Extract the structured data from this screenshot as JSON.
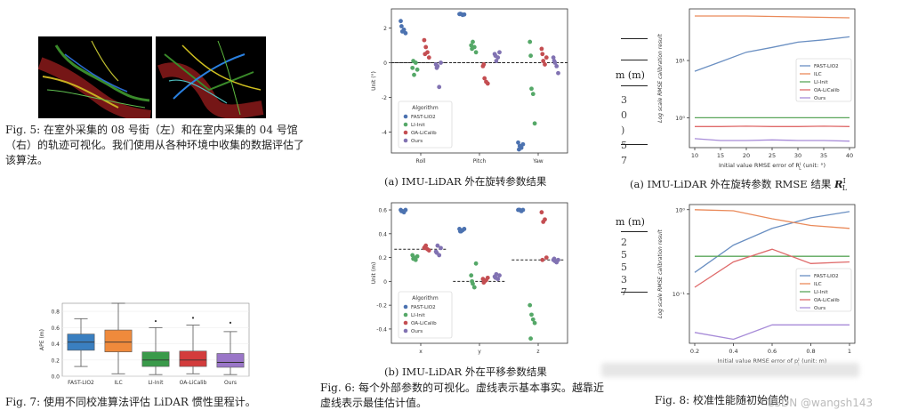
{
  "fig5": {
    "caption": "Fig. 5: 在室外采集的 08 号街（左）和在室内采集的 04 号馆（右）的轨迹可视化。我们使用从各种环境中收集的数据评估了该算法。"
  },
  "fig6": {
    "caption": "Fig. 6: 每个外部参数的可视化。虚线表示基本事实。越靠近虚线表示最佳估计值。",
    "sub_a": "(a) IMU-LiDAR 外在旋转参数结果",
    "sub_b": "(b) IMU-LiDAR 外在平移参数结果"
  },
  "fig7": {
    "caption": "Fig. 7: 使用不同校准算法评估 LiDAR 惯性里程计。"
  },
  "fig8": {
    "caption": "Fig. 8: 校准性能随初始值的",
    "sub_a": "(a) IMU-LiDAR 外在旋转参数 RMSE 结果",
    "sub_a_math": "R",
    "sub_a_sup": "I",
    "sub_a_sub": "L",
    "table_header": "m (m)",
    "table_header2": "m (m)"
  },
  "watermark": "CSDN @wangsh143",
  "colors": {
    "blue": "#4c72b0",
    "green": "#55a868",
    "red": "#c44e52",
    "purple": "#8172b2",
    "line_blue": "#6a8fc2",
    "line_orange": "#ea8a5a",
    "line_green": "#5aa65a",
    "line_red": "#df6a6a",
    "line_purple": "#a78bd8"
  },
  "chart_data": [
    {
      "id": "fig6a",
      "type": "scatter",
      "ylabel": "Unit (°)",
      "categories": [
        "Roll",
        "Pitch",
        "Yaw"
      ],
      "ylim": [
        -5.2,
        3.1
      ],
      "yticks": [
        2,
        0,
        -2,
        -4
      ],
      "ground_truth": [
        0,
        0,
        0
      ],
      "legend": {
        "title": "Algorithm",
        "position": "lower-left"
      },
      "series": [
        {
          "name": "FAST-LIO2",
          "color": "#4c72b0",
          "values": [
            [
              2.4,
              1.8,
              1.9,
              1.7,
              2.1
            ],
            [
              2.8,
              2.8,
              2.75,
              2.78,
              2.82
            ],
            [
              -4.6,
              -4.8,
              -4.9,
              -4.7,
              -5.0
            ]
          ]
        },
        {
          "name": "LI-Init",
          "color": "#55a868",
          "values": [
            [
              -0.3,
              -0.7,
              0.0,
              -0.4,
              0.1
            ],
            [
              1.0,
              1.2,
              0.9,
              0.6,
              0.8
            ],
            [
              1.2,
              -1.5,
              -1.8,
              -3.5,
              0.4
            ]
          ]
        },
        {
          "name": "OA-LiCalib",
          "color": "#c44e52",
          "values": [
            [
              1.3,
              0.9,
              0.6,
              0.3,
              0.5
            ],
            [
              -0.2,
              -0.9,
              -1.1,
              -1.2,
              -0.1
            ],
            [
              0.8,
              0.1,
              -0.1,
              0.3,
              0.5
            ]
          ]
        },
        {
          "name": "Ours",
          "color": "#8172b2",
          "values": [
            [
              -0.1,
              -0.2,
              -1.4,
              0.0,
              -0.3
            ],
            [
              0.5,
              0.1,
              0.3,
              0.6,
              0.4
            ],
            [
              0.3,
              0.0,
              -0.2,
              -0.6,
              0.1
            ]
          ]
        }
      ]
    },
    {
      "id": "fig6b",
      "type": "scatter",
      "ylabel": "Unit (m)",
      "categories": [
        "x",
        "y",
        "z"
      ],
      "ylim": [
        -0.52,
        0.66
      ],
      "yticks": [
        0.6,
        0.4,
        0.2,
        0.0,
        -0.2,
        -0.4
      ],
      "ground_truth": [
        0.27,
        0.0,
        0.18
      ],
      "legend": {
        "title": "Algorithm",
        "position": "lower-left"
      },
      "series": [
        {
          "name": "FAST-LIO2",
          "color": "#4c72b0",
          "values": [
            [
              0.6,
              0.59,
              0.58,
              0.6,
              0.59
            ],
            [
              0.44,
              0.42,
              0.43,
              0.44,
              0.42
            ],
            [
              0.6,
              0.6,
              0.59,
              0.6,
              0.6
            ]
          ]
        },
        {
          "name": "LI-Init",
          "color": "#55a868",
          "values": [
            [
              0.22,
              0.2,
              0.18,
              0.21,
              0.19
            ],
            [
              0.05,
              -0.02,
              -0.05,
              0.15,
              0.0
            ],
            [
              -0.2,
              -0.28,
              -0.32,
              -0.35,
              -0.48
            ]
          ]
        },
        {
          "name": "OA-LiCalib",
          "color": "#c44e52",
          "values": [
            [
              0.28,
              0.3,
              0.27,
              0.26,
              0.29
            ],
            [
              0.02,
              0.0,
              0.01,
              0.03,
              -0.01
            ],
            [
              0.58,
              0.5,
              0.52,
              0.2,
              0.18
            ]
          ]
        },
        {
          "name": "Ours",
          "color": "#8172b2",
          "values": [
            [
              0.25,
              0.3,
              0.22,
              0.28,
              0.24
            ],
            [
              0.04,
              0.06,
              0.02,
              0.05,
              0.03
            ],
            [
              0.18,
              0.17,
              0.16,
              0.18,
              0.19
            ]
          ]
        }
      ]
    },
    {
      "id": "fig7",
      "type": "box",
      "ylabel": "APE (m)",
      "categories": [
        "FAST-LIO2",
        "ILC",
        "LI-Init",
        "OA-LiCalib",
        "Ours"
      ],
      "ylim": [
        0,
        0.9
      ],
      "yticks": [
        0.8,
        0.6,
        0.4,
        0.2,
        0.0
      ],
      "colors": [
        "#3a7fc0",
        "#ef8a3c",
        "#3a9a4a",
        "#d33c3c",
        "#9a76c8"
      ],
      "boxes": [
        {
          "whisker_low": 0.12,
          "q1": 0.32,
          "median": 0.42,
          "q3": 0.52,
          "whisker_high": 0.71,
          "outliers": []
        },
        {
          "whisker_low": 0.03,
          "q1": 0.3,
          "median": 0.42,
          "q3": 0.57,
          "whisker_high": 0.9,
          "outliers": []
        },
        {
          "whisker_low": 0.02,
          "q1": 0.12,
          "median": 0.2,
          "q3": 0.3,
          "whisker_high": 0.6,
          "outliers": [
            0.68
          ]
        },
        {
          "whisker_low": 0.03,
          "q1": 0.12,
          "median": 0.2,
          "q3": 0.31,
          "whisker_high": 0.63,
          "outliers": [
            0.72
          ]
        },
        {
          "whisker_low": 0.02,
          "q1": 0.11,
          "median": 0.17,
          "q3": 0.28,
          "whisker_high": 0.55,
          "outliers": [
            0.66
          ]
        }
      ]
    },
    {
      "id": "fig8a",
      "type": "line",
      "yscale": "log",
      "xlabel": "Initial value RMSE error of R",
      "xlabel_sup": "I",
      "xlabel_sub": "L",
      "xlabel_unit": " (unit: °)",
      "ylabel": "Log scale RMSE calibration result",
      "x": [
        10,
        15,
        20,
        25,
        30,
        35,
        40
      ],
      "ylim": [
        0.3,
        80
      ],
      "yticks": [
        10,
        1
      ],
      "ytick_labels": [
        "10¹",
        "10⁰"
      ],
      "legend": {
        "position": "right"
      },
      "series": [
        {
          "name": "FAST-LIO2",
          "color": "#6a8fc2",
          "values": [
            6.5,
            9.5,
            14,
            17,
            21,
            23,
            26
          ]
        },
        {
          "name": "ILC",
          "color": "#ea8a5a",
          "values": [
            60,
            60,
            60,
            59,
            58,
            57,
            56
          ]
        },
        {
          "name": "LI-Init",
          "color": "#5aa65a",
          "values": [
            1.0,
            1.0,
            1.0,
            1.0,
            1.0,
            1.0,
            1.0
          ]
        },
        {
          "name": "OA-LiCalib",
          "color": "#df6a6a",
          "values": [
            0.7,
            0.7,
            0.71,
            0.7,
            0.7,
            0.71,
            0.7
          ]
        },
        {
          "name": "Ours",
          "color": "#a78bd8",
          "values": [
            0.43,
            0.4,
            0.4,
            0.41,
            0.4,
            0.4,
            0.39
          ]
        }
      ]
    },
    {
      "id": "fig8b",
      "type": "line",
      "yscale": "log",
      "xlabel": "Initial value RMSE error of p",
      "xlabel_sup": "I",
      "xlabel_sub": "L",
      "xlabel_unit": " (unit: m)",
      "ylabel": "Log scale RMSE calibration result",
      "x": [
        0.2,
        0.4,
        0.6,
        0.8,
        1.0
      ],
      "ylim": [
        0.026,
        1.15
      ],
      "yticks": [
        1,
        0.1
      ],
      "ytick_labels": [
        "10⁰",
        "10⁻¹"
      ],
      "legend": {
        "position": "right"
      },
      "series": [
        {
          "name": "FAST-LIO2",
          "color": "#6a8fc2",
          "values": [
            0.18,
            0.38,
            0.6,
            0.8,
            0.95
          ]
        },
        {
          "name": "ILC",
          "color": "#ea8a5a",
          "values": [
            1.0,
            0.97,
            0.78,
            0.65,
            0.6
          ]
        },
        {
          "name": "LI-Init",
          "color": "#5aa65a",
          "values": [
            0.28,
            0.28,
            0.28,
            0.28,
            0.28
          ]
        },
        {
          "name": "OA-LiCalib",
          "color": "#df6a6a",
          "values": [
            0.12,
            0.24,
            0.34,
            0.23,
            0.24
          ]
        },
        {
          "name": "Ours",
          "color": "#a78bd8",
          "values": [
            0.035,
            0.029,
            0.043,
            0.043,
            0.043
          ]
        }
      ]
    }
  ]
}
